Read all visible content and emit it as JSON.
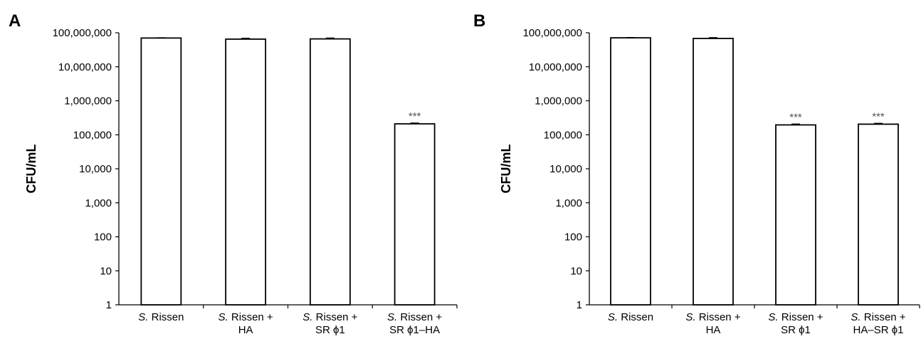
{
  "chart_data": [
    {
      "type": "bar",
      "panel_label": "A",
      "ylabel": "CFU/mL",
      "yscale": "log",
      "ylim": [
        1,
        100000000
      ],
      "yticks": [
        "1",
        "10",
        "100",
        "1,000",
        "10,000",
        "100,000",
        "1,000,000",
        "10,000,000",
        "100,000,000"
      ],
      "categories": [
        {
          "italic": "S.",
          "rest": " Rissen",
          "line2": ""
        },
        {
          "italic": "S.",
          "rest": " Rissen +",
          "line2": "HA"
        },
        {
          "italic": "S.",
          "rest": " Rissen +",
          "line2": "SR ϕ1"
        },
        {
          "italic": "S.",
          "rest": " Rissen +",
          "line2": "SR ϕ1–HA"
        }
      ],
      "values": [
        70000000,
        65000000,
        66000000,
        210000
      ],
      "errors": [
        1500000,
        4000000,
        4000000,
        12000
      ],
      "annotations": [
        "",
        "",
        "",
        "***"
      ]
    },
    {
      "type": "bar",
      "panel_label": "B",
      "ylabel": "CFU/mL",
      "yscale": "log",
      "ylim": [
        1,
        100000000
      ],
      "yticks": [
        "1",
        "10",
        "100",
        "1,000",
        "10,000",
        "100,000",
        "1,000,000",
        "10,000,000",
        "100,000,000"
      ],
      "categories": [
        {
          "italic": "S.",
          "rest": " Rissen",
          "line2": ""
        },
        {
          "italic": "S.",
          "rest": " Rissen +",
          "line2": "HA"
        },
        {
          "italic": "S.",
          "rest": " Rissen +",
          "line2": "SR ϕ1"
        },
        {
          "italic": "S.",
          "rest": " Rissen +",
          "line2": "HA–SR ϕ1"
        }
      ],
      "values": [
        71000000,
        68000000,
        195000,
        205000
      ],
      "errors": [
        1500000,
        4000000,
        12000,
        12000
      ],
      "annotations": [
        "",
        "",
        "***",
        "***"
      ]
    }
  ]
}
